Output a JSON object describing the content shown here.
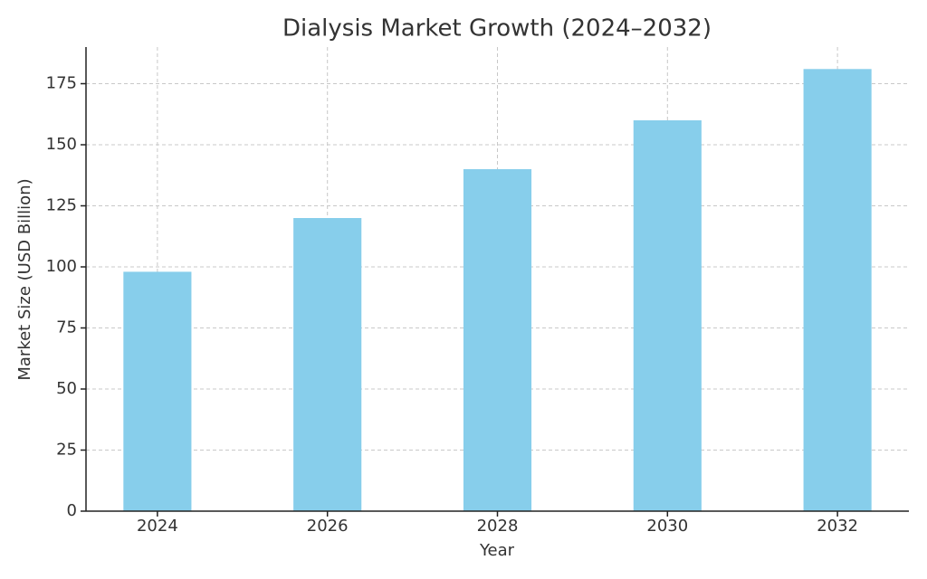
{
  "chart_data": {
    "type": "bar",
    "title": "Dialysis Market Growth (2024–2032)",
    "x_label": "Year",
    "y_label": "Market Size (USD Billion)",
    "x": [
      2024,
      2026,
      2028,
      2030,
      2032
    ],
    "values": [
      98,
      120,
      140,
      160,
      181
    ],
    "color": "#87ceeb",
    "xlim": [
      2023.16,
      2032.84
    ],
    "xticks": [
      2024,
      2026,
      2028,
      2030,
      2032
    ],
    "ylim": [
      0,
      190
    ],
    "yticks": [
      0,
      25,
      50,
      75,
      100,
      125,
      150,
      175
    ],
    "grid": true
  }
}
